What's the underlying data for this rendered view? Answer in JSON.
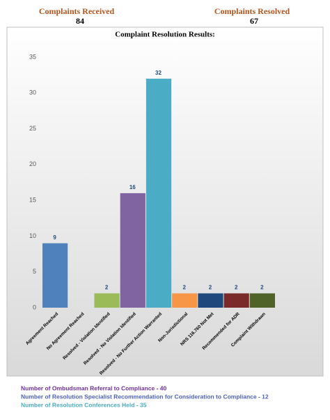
{
  "header": {
    "received_label": "Complaints Received",
    "received_value": "84",
    "resolved_label": "Complaints Resolved",
    "resolved_value": "67"
  },
  "chart_data": {
    "type": "bar",
    "title": "Complaint Resolution Results:",
    "categories": [
      "Agreement Reached",
      "No Agreement Reached",
      "Resolved - Violation Identified",
      "Resolved - No Violation Identified",
      "Resolved - No Further Action Warranted",
      "Non-Jurisdictional",
      "NRS 116.760 Not Met",
      "Recommended for ADR",
      "Complaint Withdrawn"
    ],
    "values": [
      9,
      null,
      2,
      16,
      32,
      2,
      2,
      2,
      2
    ],
    "colors": [
      "#4f81bd",
      "#4f81bd",
      "#9bbb59",
      "#8064a2",
      "#4bacc6",
      "#f79646",
      "#1f497d",
      "#7b2a2a",
      "#4f6228"
    ],
    "ylim": [
      0,
      35
    ],
    "yticks": [
      0,
      5,
      10,
      15,
      20,
      25,
      30,
      35
    ],
    "grid": false
  },
  "footer": {
    "lines": [
      "Number of Ombudsman Referral to Compliance  -  40",
      "Number of Resolution Specialist Recommendation for Consideration to Compliance  -  12",
      "Number of Resolution Conferences Held -  35"
    ],
    "colors": [
      "#7030a0",
      "#4f5fbf",
      "#4bacc6"
    ]
  }
}
